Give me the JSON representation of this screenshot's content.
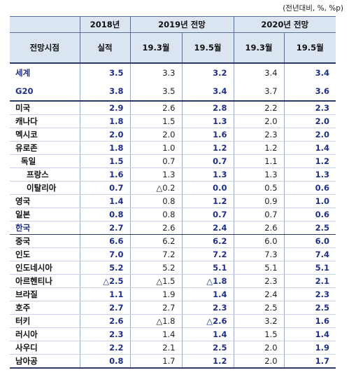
{
  "unit_note": "(전년대비, %, %p)",
  "header": {
    "col_2018": "2018년",
    "col_2019": "2019년 전망",
    "col_2020": "2020년 전망",
    "row_label": "전망시점",
    "sub_actual": "실적",
    "sub_2019_mar": "19.3월",
    "sub_2019_may": "19.5월",
    "sub_2020_mar": "19.3월",
    "sub_2020_may": "19.5월"
  },
  "rows": [
    {
      "name": "세계",
      "v": [
        "3.5",
        "3.3",
        "3.2",
        "3.4",
        "3.4"
      ]
    },
    {
      "name": "G20",
      "v": [
        "3.8",
        "3.5",
        "3.4",
        "3.7",
        "3.6"
      ]
    },
    {
      "name": "미국",
      "v": [
        "2.9",
        "2.6",
        "2.8",
        "2.2",
        "2.3"
      ]
    },
    {
      "name": "캐나다",
      "v": [
        "1.8",
        "1.5",
        "1.3",
        "2.0",
        "2.0"
      ]
    },
    {
      "name": "멕시코",
      "v": [
        "2.0",
        "2.0",
        "1.6",
        "2.3",
        "2.0"
      ]
    },
    {
      "name": "유로존",
      "v": [
        "1.8",
        "1.0",
        "1.2",
        "1.2",
        "1.4"
      ]
    },
    {
      "name": "독일",
      "v": [
        "1.5",
        "0.7",
        "0.7",
        "1.1",
        "1.2"
      ]
    },
    {
      "name": "프랑스",
      "v": [
        "1.6",
        "1.3",
        "1.3",
        "1.3",
        "1.3"
      ]
    },
    {
      "name": "이탈리아",
      "v": [
        "0.7",
        "△0.2",
        "0.0",
        "0.5",
        "0.6"
      ]
    },
    {
      "name": "영국",
      "v": [
        "1.4",
        "0.8",
        "1.2",
        "0.9",
        "1.0"
      ]
    },
    {
      "name": "일본",
      "v": [
        "0.8",
        "0.8",
        "0.7",
        "0.7",
        "0.6"
      ]
    },
    {
      "name": "한국",
      "v": [
        "2.7",
        "2.6",
        "2.4",
        "2.6",
        "2.5"
      ]
    },
    {
      "name": "중국",
      "v": [
        "6.6",
        "6.2",
        "6.2",
        "6.0",
        "6.0"
      ]
    },
    {
      "name": "인도",
      "v": [
        "7.0",
        "7.2",
        "7.2",
        "7.3",
        "7.4"
      ]
    },
    {
      "name": "인도네시아",
      "v": [
        "5.2",
        "5.2",
        "5.1",
        "5.1",
        "5.1"
      ]
    },
    {
      "name": "아르헨티나",
      "v": [
        "△2.5",
        "△1.5",
        "△1.8",
        "2.3",
        "2.1"
      ]
    },
    {
      "name": "브라질",
      "v": [
        "1.1",
        "1.9",
        "1.4",
        "2.4",
        "2.3"
      ]
    },
    {
      "name": "호주",
      "v": [
        "2.7",
        "2.7",
        "2.3",
        "2.5",
        "2.5"
      ]
    },
    {
      "name": "터키",
      "v": [
        "2.6",
        "△1.8",
        "△2.6",
        "3.2",
        "1.6"
      ]
    },
    {
      "name": "러시아",
      "v": [
        "2.3",
        "1.4",
        "1.4",
        "1.5",
        "1.4"
      ]
    },
    {
      "name": "사우디",
      "v": [
        "2.2",
        "2.1",
        "2.5",
        "2.0",
        "1.9"
      ]
    },
    {
      "name": "남아공",
      "v": [
        "0.8",
        "1.7",
        "1.2",
        "2.0",
        "1.7"
      ]
    }
  ]
}
